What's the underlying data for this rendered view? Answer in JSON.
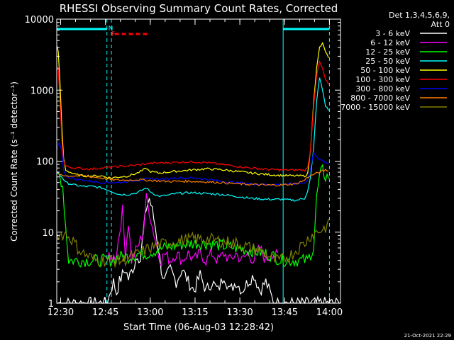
{
  "chart_data": {
    "type": "line",
    "title": "RHESSI Observing Summary Count Rates, Corrected",
    "xlabel": "Start Time (06-Aug-03 12:28:42)",
    "ylabel": "Corrected Count Rate (s⁻¹ detector⁻¹)",
    "ylog": true,
    "ylim": [
      1,
      10000
    ],
    "xlim_minutes": [
      0,
      95
    ],
    "x_ticks": [
      {
        "label": "12:30",
        "m": 1.3
      },
      {
        "label": "12:45",
        "m": 16.3
      },
      {
        "label": "13:00",
        "m": 31.3
      },
      {
        "label": "13:15",
        "m": 46.3
      },
      {
        "label": "13:30",
        "m": 61.3
      },
      {
        "label": "13:45",
        "m": 76.3
      },
      {
        "label": "14:00",
        "m": 91.3
      }
    ],
    "y_ticks": [
      {
        "label": "1",
        "v": 1
      },
      {
        "label": "10",
        "v": 10
      },
      {
        "label": "100",
        "v": 100
      },
      {
        "label": "1000",
        "v": 1000
      },
      {
        "label": "10000",
        "v": 10000
      }
    ],
    "legend_header_1": "Det 1,3,4,5,6,9,",
    "legend_header_2": "Att 0",
    "flag_n": "N",
    "flag_f": "F",
    "night_segments_minutes": [
      [
        0,
        16.8
      ],
      [
        75.8,
        91.3
      ]
    ],
    "flare_flag_minutes": [
      20.8,
      31.3
    ],
    "series": [
      {
        "name": "3 - 6 keV",
        "color": "#ffffff",
        "points": [
          [
            0,
            1.0
          ],
          [
            17,
            1.0
          ],
          [
            18,
            1.5
          ],
          [
            19,
            2
          ],
          [
            20,
            1.4
          ],
          [
            21,
            2
          ],
          [
            22,
            2.5
          ],
          [
            23,
            3
          ],
          [
            24,
            2.2
          ],
          [
            26,
            3.5
          ],
          [
            27,
            5
          ],
          [
            28,
            4
          ],
          [
            29,
            10
          ],
          [
            30,
            22
          ],
          [
            31,
            30
          ],
          [
            32,
            20
          ],
          [
            33,
            12
          ],
          [
            34,
            6
          ],
          [
            35,
            3
          ],
          [
            36,
            2
          ],
          [
            38,
            3
          ],
          [
            40,
            2
          ],
          [
            42,
            3
          ],
          [
            44,
            2
          ],
          [
            46,
            1.5
          ],
          [
            48,
            2.5
          ],
          [
            50,
            1.5
          ],
          [
            52,
            2
          ],
          [
            54,
            1.5
          ],
          [
            56,
            2.5
          ],
          [
            58,
            1.5
          ],
          [
            60,
            2
          ],
          [
            62,
            1.5
          ],
          [
            64,
            2
          ],
          [
            66,
            2.5
          ],
          [
            68,
            1.5
          ],
          [
            70,
            2
          ],
          [
            72,
            1.2
          ],
          [
            73,
            1.0
          ],
          [
            95,
            1.0
          ]
        ]
      },
      {
        "name": "6 - 12 keV",
        "color": "#ff00ff",
        "points": [
          [
            16.5,
            4.5
          ],
          [
            18,
            4
          ],
          [
            20,
            5
          ],
          [
            22,
            20
          ],
          [
            23,
            5
          ],
          [
            24,
            14
          ],
          [
            25,
            4
          ],
          [
            27,
            6
          ],
          [
            29,
            10
          ],
          [
            30,
            30
          ],
          [
            31,
            20
          ],
          [
            32,
            12
          ],
          [
            33,
            8
          ],
          [
            34,
            5
          ],
          [
            35,
            4
          ],
          [
            36,
            5
          ],
          [
            38,
            4
          ],
          [
            40,
            5
          ],
          [
            42,
            4
          ],
          [
            44,
            5
          ],
          [
            46,
            4
          ],
          [
            48,
            5
          ],
          [
            50,
            4
          ],
          [
            52,
            5
          ],
          [
            54,
            4
          ],
          [
            56,
            5
          ],
          [
            58,
            4
          ],
          [
            60,
            5
          ],
          [
            62,
            4
          ],
          [
            64,
            5
          ],
          [
            66,
            4
          ],
          [
            68,
            6
          ],
          [
            70,
            4
          ],
          [
            72,
            5
          ],
          [
            74,
            4.5
          ]
        ]
      },
      {
        "name": "12 - 25 keV",
        "color": "#00ff00",
        "points": [
          [
            0,
            68
          ],
          [
            1,
            62
          ],
          [
            2,
            45
          ],
          [
            3,
            12
          ],
          [
            4,
            4
          ],
          [
            6,
            4
          ],
          [
            9,
            4
          ],
          [
            12,
            4
          ],
          [
            15,
            4
          ],
          [
            18,
            4
          ],
          [
            21,
            4.5
          ],
          [
            24,
            4.5
          ],
          [
            27,
            5
          ],
          [
            30,
            5
          ],
          [
            33,
            5.5
          ],
          [
            36,
            6
          ],
          [
            40,
            6.5
          ],
          [
            45,
            7
          ],
          [
            50,
            7
          ],
          [
            55,
            6.5
          ],
          [
            60,
            6
          ],
          [
            65,
            5.5
          ],
          [
            70,
            5
          ],
          [
            73,
            4.5
          ],
          [
            75,
            4
          ],
          [
            80,
            4
          ],
          [
            84,
            4
          ],
          [
            85,
            5
          ],
          [
            86,
            6
          ],
          [
            87,
            30
          ],
          [
            88,
            60
          ],
          [
            89,
            75
          ],
          [
            90,
            60
          ],
          [
            91,
            62
          ]
        ]
      },
      {
        "name": "25 - 50 keV",
        "color": "#00ffff",
        "points": [
          [
            0,
            70
          ],
          [
            1,
            64
          ],
          [
            2,
            58
          ],
          [
            3,
            50
          ],
          [
            6,
            46
          ],
          [
            9,
            44
          ],
          [
            12,
            44
          ],
          [
            15,
            42
          ],
          [
            18,
            38
          ],
          [
            21,
            34
          ],
          [
            24,
            34
          ],
          [
            27,
            36
          ],
          [
            29,
            40
          ],
          [
            30,
            42
          ],
          [
            31,
            38
          ],
          [
            34,
            32
          ],
          [
            37,
            33
          ],
          [
            40,
            35
          ],
          [
            45,
            36
          ],
          [
            50,
            35
          ],
          [
            55,
            34
          ],
          [
            60,
            32
          ],
          [
            65,
            30
          ],
          [
            70,
            29
          ],
          [
            75,
            29
          ],
          [
            80,
            28
          ],
          [
            83,
            30
          ],
          [
            84,
            38
          ],
          [
            85,
            60
          ],
          [
            86,
            150
          ],
          [
            87,
            700
          ],
          [
            88,
            1500
          ],
          [
            89,
            1000
          ],
          [
            90,
            600
          ],
          [
            91,
            520
          ]
        ]
      },
      {
        "name": "50 - 100 keV",
        "color": "#ffff00",
        "points": [
          [
            0,
            4200
          ],
          [
            0.5,
            3500
          ],
          [
            1,
            1500
          ],
          [
            1.7,
            300
          ],
          [
            2.3,
            110
          ],
          [
            3,
            75
          ],
          [
            6,
            65
          ],
          [
            9,
            62
          ],
          [
            12,
            62
          ],
          [
            15,
            62
          ],
          [
            18,
            58
          ],
          [
            21,
            60
          ],
          [
            24,
            62
          ],
          [
            27,
            68
          ],
          [
            29,
            75
          ],
          [
            30,
            80
          ],
          [
            31,
            72
          ],
          [
            34,
            68
          ],
          [
            37,
            70
          ],
          [
            40,
            72
          ],
          [
            45,
            75
          ],
          [
            50,
            78
          ],
          [
            55,
            76
          ],
          [
            60,
            72
          ],
          [
            65,
            68
          ],
          [
            70,
            65
          ],
          [
            75,
            63
          ],
          [
            80,
            62
          ],
          [
            83,
            62
          ],
          [
            84,
            66
          ],
          [
            85,
            150
          ],
          [
            86,
            700
          ],
          [
            87,
            2000
          ],
          [
            88,
            4000
          ],
          [
            89,
            4500
          ],
          [
            90,
            3500
          ],
          [
            91,
            2800
          ]
        ]
      },
      {
        "name": "100 - 300 keV",
        "color": "#ff0000",
        "points": [
          [
            0,
            2100
          ],
          [
            0.5,
            2000
          ],
          [
            1,
            800
          ],
          [
            1.7,
            200
          ],
          [
            2.3,
            100
          ],
          [
            3,
            85
          ],
          [
            6,
            80
          ],
          [
            9,
            78
          ],
          [
            12,
            78
          ],
          [
            15,
            80
          ],
          [
            18,
            82
          ],
          [
            21,
            84
          ],
          [
            24,
            86
          ],
          [
            27,
            88
          ],
          [
            30,
            92
          ],
          [
            33,
            94
          ],
          [
            36,
            95
          ],
          [
            40,
            96
          ],
          [
            45,
            98
          ],
          [
            50,
            96
          ],
          [
            55,
            90
          ],
          [
            60,
            85
          ],
          [
            65,
            80
          ],
          [
            70,
            77
          ],
          [
            75,
            75
          ],
          [
            80,
            75
          ],
          [
            83,
            75
          ],
          [
            84,
            80
          ],
          [
            85,
            150
          ],
          [
            86,
            600
          ],
          [
            87,
            1600
          ],
          [
            88,
            2500
          ],
          [
            89,
            2000
          ],
          [
            90,
            1400
          ],
          [
            91,
            1200
          ]
        ]
      },
      {
        "name": "300 - 800 keV",
        "color": "#0000ff",
        "points": [
          [
            0,
            140
          ],
          [
            0.5,
            170
          ],
          [
            1,
            175
          ],
          [
            1.5,
            150
          ],
          [
            2.3,
            75
          ],
          [
            3,
            62
          ],
          [
            6,
            56
          ],
          [
            9,
            54
          ],
          [
            12,
            52
          ],
          [
            15,
            50
          ],
          [
            18,
            50
          ],
          [
            21,
            50
          ],
          [
            24,
            52
          ],
          [
            27,
            54
          ],
          [
            30,
            56
          ],
          [
            33,
            56
          ],
          [
            36,
            56
          ],
          [
            40,
            58
          ],
          [
            45,
            58
          ],
          [
            50,
            56
          ],
          [
            55,
            52
          ],
          [
            60,
            50
          ],
          [
            65,
            48
          ],
          [
            70,
            47
          ],
          [
            75,
            47
          ],
          [
            80,
            48
          ],
          [
            83,
            50
          ],
          [
            84,
            55
          ],
          [
            85,
            80
          ],
          [
            86,
            130
          ],
          [
            87,
            120
          ],
          [
            88,
            105
          ],
          [
            89,
            100
          ],
          [
            90,
            95
          ],
          [
            91,
            90
          ]
        ]
      },
      {
        "name": "800 - 7000 keV",
        "color": "#ff8000",
        "points": [
          [
            0,
            68
          ],
          [
            3,
            62
          ],
          [
            6,
            62
          ],
          [
            9,
            62
          ],
          [
            12,
            60
          ],
          [
            15,
            58
          ],
          [
            18,
            55
          ],
          [
            21,
            54
          ],
          [
            24,
            54
          ],
          [
            27,
            55
          ],
          [
            30,
            54
          ],
          [
            33,
            53
          ],
          [
            36,
            52
          ],
          [
            40,
            52
          ],
          [
            45,
            52
          ],
          [
            50,
            51
          ],
          [
            55,
            50
          ],
          [
            60,
            48
          ],
          [
            65,
            47
          ],
          [
            70,
            46
          ],
          [
            75,
            46
          ],
          [
            80,
            48
          ],
          [
            83,
            54
          ],
          [
            84,
            60
          ],
          [
            86,
            65
          ],
          [
            88,
            70
          ],
          [
            90,
            75
          ],
          [
            91,
            73
          ]
        ]
      },
      {
        "name": "7000 - 15000 keV",
        "color": "#808000",
        "points": [
          [
            0,
            10
          ],
          [
            1,
            9
          ],
          [
            3,
            9.5
          ],
          [
            5,
            8
          ],
          [
            7,
            6
          ],
          [
            9,
            5
          ],
          [
            11,
            4.5
          ],
          [
            13,
            4
          ],
          [
            16,
            4
          ],
          [
            19,
            4
          ],
          [
            22,
            4
          ],
          [
            25,
            4.5
          ],
          [
            28,
            5
          ],
          [
            31,
            6
          ],
          [
            34,
            6.5
          ],
          [
            37,
            7
          ],
          [
            40,
            7.5
          ],
          [
            45,
            8
          ],
          [
            50,
            8
          ],
          [
            55,
            7.5
          ],
          [
            60,
            7
          ],
          [
            65,
            6
          ],
          [
            70,
            5
          ],
          [
            73,
            4
          ],
          [
            75,
            4
          ],
          [
            77,
            4.5
          ],
          [
            79,
            5
          ],
          [
            81,
            6
          ],
          [
            83,
            7
          ],
          [
            85,
            9
          ],
          [
            87,
            10
          ],
          [
            89,
            11
          ],
          [
            91,
            12.5
          ]
        ]
      }
    ],
    "footer_date": "21-Oct-2021 22:29"
  }
}
